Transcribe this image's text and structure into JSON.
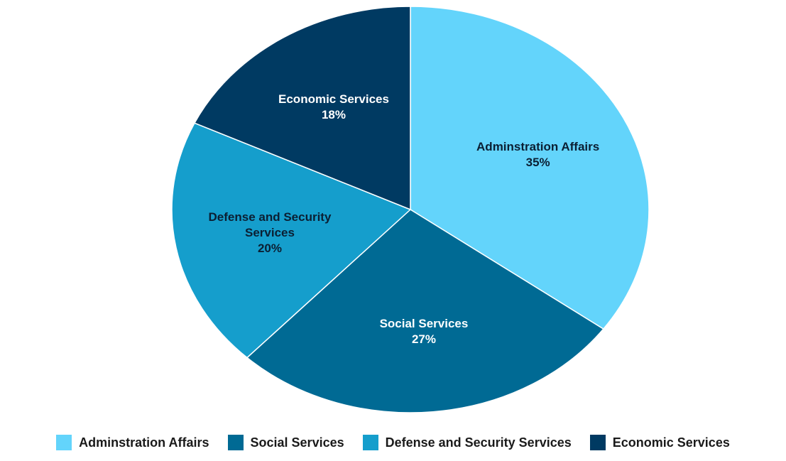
{
  "chart_data": {
    "type": "pie",
    "slices": [
      {
        "label": "Adminstration Affairs",
        "label_lines": [
          "Adminstration Affairs"
        ],
        "value": 35,
        "value_label": "35%",
        "color": "#63d4fb",
        "text_color": "#0b1f33"
      },
      {
        "label": "Social Services",
        "label_lines": [
          "Social Services"
        ],
        "value": 27,
        "value_label": "27%",
        "color": "#006a94",
        "text_color": "#ffffff"
      },
      {
        "label": "Defense and Security Services",
        "label_lines": [
          "Defense and Security",
          "Services"
        ],
        "value": 20,
        "value_label": "20%",
        "color": "#159ecc",
        "text_color": "#0b1f33"
      },
      {
        "label": "Economic Services",
        "label_lines": [
          "Economic Services"
        ],
        "value": 18,
        "value_label": "18%",
        "color": "#003a62",
        "text_color": "#ffffff"
      }
    ],
    "start_angle": "12 o'clock",
    "direction": "clockwise",
    "legend": {
      "position": "bottom",
      "items": [
        "Adminstration Affairs",
        "Social Services",
        "Defense and Security Services",
        "Economic Services"
      ]
    }
  }
}
